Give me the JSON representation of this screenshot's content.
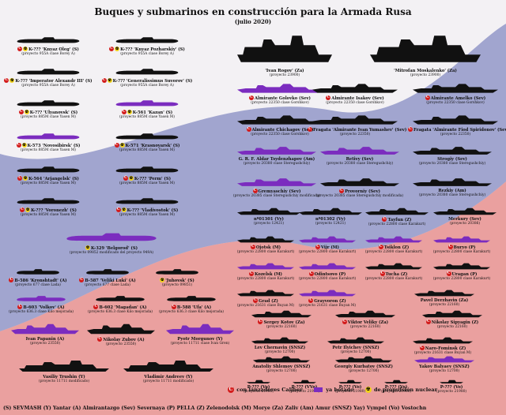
{
  "title": "Buques y submarinos en construcción para la Armada Rusa",
  "subtitle": "(julio 2020)",
  "colors": {
    "built": "#7b2cbf",
    "existing": "#111111",
    "caliber": "#d31b1b",
    "nuclear": "#f1d21a",
    "flag_red": "#d52b1e",
    "flag_blue": "#4a56a5"
  },
  "icon_letters": {
    "caliber": "C",
    "nuclear": "☢"
  },
  "legend": {
    "caliber": "con lanzadores Caliber",
    "built": "ya botado",
    "nuclear": "de propulsión nuclear"
  },
  "footer": "(S) SEVMASH   (Y) Yantar   (A) Almirantazgo   (Sev) Severnaya   (P) PELLA   (Z) Zelenodolsk   (M) Morye   (Za) Zaliv   (Am) Amur   (SNSZ) Yay) Vympel   (Vo) Vostochn",
  "items": [
    {
      "name": "K-??? 'Knyaz Oleg' (S)",
      "proj": "(proyecto 955A clase Borey A)",
      "kind": "sub",
      "built": false,
      "c": true,
      "nuc": true
    },
    {
      "name": "K-??? 'Knyaz Pozharskiy' (S)",
      "proj": "(proyecto 955A clase Borey A)",
      "kind": "sub",
      "built": false,
      "c": true,
      "nuc": true
    },
    {
      "name": "'Ivan Rogov' (Za)",
      "proj": "(proyecto 23900)",
      "kind": "big",
      "built": false,
      "c": false,
      "nuc": false
    },
    {
      "name": "'Mitrofan Moskalenko' (Za)",
      "proj": "(proyecto 23900)",
      "kind": "big",
      "built": false,
      "c": false,
      "nuc": false
    },
    {
      "name": "K-??? 'Imperator Alexandr III' (S)",
      "proj": "(proyecto 955A clase Borey A)",
      "kind": "sub",
      "built": false,
      "c": true,
      "nuc": true
    },
    {
      "name": "K-??? 'Generalissimus Suvorov' (S)",
      "proj": "(proyecto 955A clase Borey A)",
      "kind": "sub",
      "built": false,
      "c": true,
      "nuc": true
    },
    {
      "name": "Almirante Golovko (Sev)",
      "proj": "(proyecto 22350 clase Gorshkov)",
      "kind": "frig",
      "built": true,
      "c": true,
      "nuc": false
    },
    {
      "name": "Almirante Isakov (Sev)",
      "proj": "(proyecto 22350 clase Gorshkov)",
      "kind": "frig",
      "built": false,
      "c": true,
      "nuc": false
    },
    {
      "name": "Almirante Amelko (Sev)",
      "proj": "(proyecto 22350 clase Gorshkov)",
      "kind": "frig",
      "built": false,
      "c": true,
      "nuc": false
    },
    {
      "name": "K-??? 'Ulyanovsk' (S)",
      "proj": "(proyecto 885M clase Yasen M)",
      "kind": "sub",
      "built": false,
      "c": true,
      "nuc": true
    },
    {
      "name": "K-561 'Kazan' (S)",
      "proj": "(proyecto 885M clase Yasen M)",
      "kind": "sub",
      "built": true,
      "c": true,
      "nuc": true
    },
    {
      "name": "Almirante Chichagov (Sev)",
      "proj": "(proyecto 22350 clase Gorshkov)",
      "kind": "frig",
      "built": false,
      "c": true,
      "nuc": false
    },
    {
      "name": "Fragata 'Almirante Ivan Yumashev' (Sev)",
      "proj": "(proyecto 22350)",
      "kind": "frig",
      "built": false,
      "c": true,
      "nuc": false
    },
    {
      "name": "Fragata 'Almirante Fiod Spiridonov' (Sev)",
      "proj": "(proyecto 22350)",
      "kind": "frig",
      "built": false,
      "c": true,
      "nuc": false
    },
    {
      "name": "K-573 'Novosibirsk' (S)",
      "proj": "(proyecto 885M clase Yasen M)",
      "kind": "sub",
      "built": true,
      "c": true,
      "nuc": true
    },
    {
      "name": "K-571 'Krasnoyarsk' (S)",
      "proj": "(proyecto 885M clase Yasen M)",
      "kind": "sub",
      "built": false,
      "c": true,
      "nuc": true
    },
    {
      "name": "G. R. F. Aldar Tsydenzhapov (Am)",
      "proj": "(proyecto 20380 clase Steregushchiy)",
      "kind": "corv",
      "built": true,
      "c": false,
      "nuc": false
    },
    {
      "name": "Retivy (Sev)",
      "proj": "(proyecto 20380 clase Steregushchiy)",
      "kind": "corv",
      "built": true,
      "c": false,
      "nuc": false
    },
    {
      "name": "Strogiy (Sev)",
      "proj": "(proyecto 20380 clase Steregushchiy)",
      "kind": "corv",
      "built": false,
      "c": false,
      "nuc": false
    },
    {
      "name": "K-564 'Arjangelsk' (S)",
      "proj": "(proyecto 885M clase Yasen M)",
      "kind": "sub",
      "built": false,
      "c": true,
      "nuc": true
    },
    {
      "name": "K-??? 'Perm' (S)",
      "proj": "(proyecto 885M clase Yasen M)",
      "kind": "sub",
      "built": false,
      "c": true,
      "nuc": true
    },
    {
      "name": "Gremyaschiy (Sev)",
      "proj": "(proyecto 20385 clase Steregushchiy modificada)",
      "kind": "corv",
      "built": true,
      "c": true,
      "nuc": false
    },
    {
      "name": "Provorniy (Sev)",
      "proj": "(proyecto 20385 clase Steregushchiy modificada)",
      "kind": "corv",
      "built": false,
      "c": true,
      "nuc": false
    },
    {
      "name": "Rezkiy (Am)",
      "proj": "(proyecto 20380 clase Steregushchiy)",
      "kind": "corv",
      "built": false,
      "c": false,
      "nuc": false
    },
    {
      "name": "K-??? 'Voronezh' (S)",
      "proj": "(proyecto 885M clase Yasen M)",
      "kind": "sub",
      "built": false,
      "c": true,
      "nuc": true
    },
    {
      "name": "K-??? 'Vladivostok' (S)",
      "proj": "(proyecto 885M clase Yasen M)",
      "kind": "sub",
      "built": false,
      "c": true,
      "nuc": true
    },
    {
      "name": "nº01301 (Vy)",
      "proj": "(proyecto 12421)",
      "kind": "small",
      "built": false,
      "c": false,
      "nuc": false
    },
    {
      "name": "nº01302 (Vy)",
      "proj": "(proyecto 12421)",
      "kind": "small",
      "built": false,
      "c": false,
      "nuc": false
    },
    {
      "name": "Tayfun (Z)",
      "proj": "(proyecto 22800 clase Karakurt)",
      "kind": "small",
      "built": false,
      "c": true,
      "nuc": false
    },
    {
      "name": "Merkury (Sev)",
      "proj": "(proyecto 20386)",
      "kind": "small",
      "built": false,
      "c": false,
      "nuc": false
    },
    {
      "name": "K-329 'Belgorod' (S)",
      "proj": "(proyecto 09852 modificado del proyecto 949A)",
      "kind": "sub",
      "built": true,
      "c": false,
      "nuc": true
    },
    {
      "name": "Ojotsk (M)",
      "proj": "(proyecto 22800 clase Karakurt)",
      "kind": "small",
      "built": false,
      "c": true,
      "nuc": false
    },
    {
      "name": "Vijr (M)",
      "proj": "(proyecto 22800 clase Karakurt)",
      "kind": "small",
      "built": true,
      "c": true,
      "nuc": false
    },
    {
      "name": "Tsiklon (Z)",
      "proj": "(proyecto 22800 clase Karakurt)",
      "kind": "small",
      "built": true,
      "c": true,
      "nuc": false
    },
    {
      "name": "Buryo (P)",
      "proj": "(proyecto 22800 clase Karakurt)",
      "kind": "small",
      "built": true,
      "c": true,
      "nuc": false
    },
    {
      "name": "B-586 'Kronshtadt' (A)",
      "proj": "(proyecto 677 clase Lada)",
      "kind": "sub",
      "built": false,
      "c": true,
      "nuc": false
    },
    {
      "name": "B-587 'Veliki Luki' (A)",
      "proj": "(proyecto 677 clase Lada)",
      "kind": "sub",
      "built": false,
      "c": true,
      "nuc": false
    },
    {
      "name": "'Juhovsk' (S)",
      "proj": "(proyecto 09851)",
      "kind": "sub",
      "built": false,
      "c": false,
      "nuc": true
    },
    {
      "name": "Kozelsk (M)",
      "proj": "(proyecto 22800 clase Karakurt)",
      "kind": "small",
      "built": true,
      "c": true,
      "nuc": false
    },
    {
      "name": "Odintsovo (P)",
      "proj": "(proyecto 22800 clase Karakurt)",
      "kind": "small",
      "built": true,
      "c": true,
      "nuc": false
    },
    {
      "name": "Tucha (Z)",
      "proj": "(proyecto 22800 clase Karakurt)",
      "kind": "small",
      "built": false,
      "c": true,
      "nuc": false
    },
    {
      "name": "Uragan (P)",
      "proj": "(proyecto 22800 clase Karakurt)",
      "kind": "small",
      "built": false,
      "c": true,
      "nuc": false
    },
    {
      "name": "B-603 'Volkov' (A)",
      "proj": "(proyecto 636.3 clase Kilo mejorada)",
      "kind": "sub",
      "built": true,
      "c": true,
      "nuc": false
    },
    {
      "name": "B-602 'Magadan' (A)",
      "proj": "(proyecto 636.3 clase Kilo mejorada)",
      "kind": "sub",
      "built": false,
      "c": true,
      "nuc": false
    },
    {
      "name": "B-588 'Ufa' (A)",
      "proj": "(proyecto 636.3 clase Kilo mejorada)",
      "kind": "sub",
      "built": false,
      "c": true,
      "nuc": false
    },
    {
      "name": "Grad (Z)",
      "proj": "(proyecto 21631 clase Buyan M)",
      "kind": "small",
      "built": false,
      "c": true,
      "nuc": false
    },
    {
      "name": "Grayvoron (Z)",
      "proj": "(proyecto 21631 clase Buyan M)",
      "kind": "small",
      "built": true,
      "c": true,
      "nuc": false
    },
    {
      "name": "Pavel Derzhavin (Za)",
      "proj": "(proyecto 22160)",
      "kind": "small",
      "built": false,
      "c": false,
      "nuc": false
    },
    {
      "name": "Ivan Papanin (A)",
      "proj": "(proyecto 23550)",
      "kind": "frig",
      "built": true,
      "c": false,
      "nuc": false
    },
    {
      "name": "Nikolay Zubov (A)",
      "proj": "(proyecto 23550)",
      "kind": "frig",
      "built": false,
      "c": true,
      "nuc": false
    },
    {
      "name": "Pyotr Morgunov (Y)",
      "proj": "(proyecto 11711 clase Ivan Gren)",
      "kind": "frig",
      "built": true,
      "c": false,
      "nuc": false
    },
    {
      "name": "Sergey Kotov (Za)",
      "proj": "(proyecto 22160)",
      "kind": "small",
      "built": false,
      "c": true,
      "nuc": false
    },
    {
      "name": "Viktor Veliky (Za)",
      "proj": "(proyecto 22160)",
      "kind": "small",
      "built": false,
      "c": true,
      "nuc": false
    },
    {
      "name": "Nikolay Sipyagin (Z)",
      "proj": "(proyecto 22160)",
      "kind": "small",
      "built": false,
      "c": true,
      "nuc": false
    },
    {
      "name": "Lev Chernavin (SNSZ)",
      "proj": "(proyecto 12700)",
      "kind": "small",
      "built": false,
      "c": false,
      "nuc": false
    },
    {
      "name": "Petr Ilyichev (SNSZ)",
      "proj": "(proyecto 12700)",
      "kind": "small",
      "built": false,
      "c": false,
      "nuc": false
    },
    {
      "name": "Naro-Fominsk (Z)",
      "proj": "(proyecto 21631 clase Buyan M)",
      "kind": "small",
      "built": false,
      "c": true,
      "nuc": false
    },
    {
      "name": "Anatoliy Shlemov (SNSZ)",
      "proj": "(proyecto 12700)",
      "kind": "small",
      "built": false,
      "c": false,
      "nuc": false
    },
    {
      "name": "Georgiy Kurbatov (SNSZ)",
      "proj": "(proyecto 12700)",
      "kind": "small",
      "built": false,
      "c": false,
      "nuc": false
    },
    {
      "name": "Yakov Balyaev (SNSZ)",
      "proj": "(proyecto 12700)",
      "kind": "small",
      "built": true,
      "c": false,
      "nuc": false
    },
    {
      "name": "Vasiliy Trushin (Y)",
      "proj": "(proyecto 11711 modificado)",
      "kind": "big",
      "built": false,
      "c": false,
      "nuc": false
    },
    {
      "name": "Vladimir Andreev (Y)",
      "proj": "(proyecto 11711 modificado)",
      "kind": "big",
      "built": false,
      "c": false,
      "nuc": false
    },
    {
      "name": "P-??? (Vo)",
      "proj": "(proyecto 21980)",
      "kind": "tiny",
      "built": false,
      "c": false,
      "nuc": false
    },
    {
      "name": "P-??? (VVo)",
      "proj": "(proyecto 21980)",
      "kind": "tiny",
      "built": false,
      "c": false,
      "nuc": false
    },
    {
      "name": "P-??? (Vo)",
      "proj": "(proyecto 21980)",
      "kind": "tiny",
      "built": false,
      "c": false,
      "nuc": false
    },
    {
      "name": "P-??? (Vo)",
      "proj": "(proyecto 21980)",
      "kind": "tiny",
      "built": false,
      "c": false,
      "nuc": false
    },
    {
      "name": "P-??? (Vo)",
      "proj": "(proyecto 21980)",
      "kind": "tiny",
      "built": false,
      "c": false,
      "nuc": false
    }
  ]
}
